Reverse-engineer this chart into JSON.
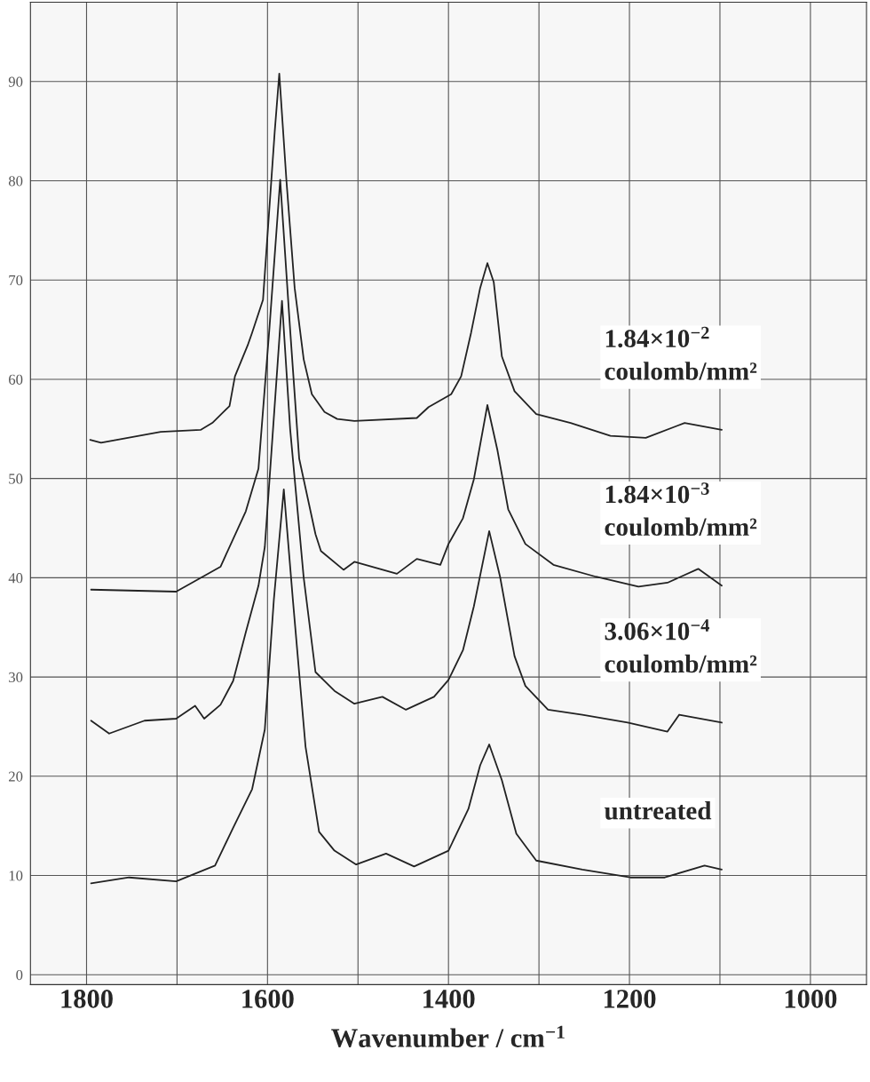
{
  "chart_data": {
    "type": "line",
    "xlabel": "Wavenumber / cm$^{−1}$",
    "xlim": [
      1862,
      938
    ],
    "ylim": [
      -1,
      98
    ],
    "xticks": [
      1800,
      {
        "value": 1700,
        "label": null
      },
      1600,
      {
        "value": 1500,
        "label": null
      },
      1400,
      {
        "value": 1300,
        "label": null
      },
      1200,
      {
        "value": 1100,
        "label": null
      },
      1000
    ],
    "yticks": [
      0,
      10,
      20,
      30,
      40,
      50,
      60,
      70,
      80,
      90
    ],
    "grid": true,
    "legend": false,
    "marker": "none",
    "line_style": "solid",
    "series": [
      {
        "name": "1.84×10$^{−2}$\ncoulomb/mm²",
        "color": "#222222",
        "x": [
          1796,
          1784,
          1718,
          1674,
          1661,
          1642,
          1636,
          1622,
          1617,
          1605,
          1592,
          1587,
          1579,
          1570,
          1560,
          1551,
          1537,
          1523,
          1504,
          1435,
          1422,
          1397,
          1386,
          1375,
          1365,
          1357,
          1350,
          1341,
          1327,
          1303,
          1265,
          1221,
          1182,
          1139,
          1098
        ],
        "values": [
          53.9,
          53.6,
          54.7,
          54.9,
          55.6,
          57.3,
          60.3,
          63.4,
          64.7,
          68,
          85,
          90.8,
          79.9,
          69.2,
          62,
          58.5,
          56.7,
          56,
          55.8,
          56.1,
          57.2,
          58.5,
          60.3,
          64.7,
          69.2,
          71.7,
          69.8,
          62.3,
          58.8,
          56.5,
          55.6,
          54.3,
          54.1,
          55.6,
          54.9
        ]
      },
      {
        "name": "1.84×10$^{−3}$\ncoulomb/mm²",
        "color": "#222222",
        "x": [
          1795,
          1701,
          1652,
          1624,
          1610,
          1598,
          1586,
          1575,
          1565,
          1547,
          1541,
          1516,
          1504,
          1457,
          1435,
          1409,
          1400,
          1384,
          1372,
          1357,
          1346,
          1334,
          1315,
          1284,
          1237,
          1190,
          1158,
          1124,
          1098
        ],
        "values": [
          38.8,
          38.6,
          41.1,
          46.7,
          51,
          65,
          80.1,
          65,
          52,
          44.4,
          42.7,
          40.8,
          41.6,
          40.4,
          41.9,
          41.3,
          43.4,
          46,
          49.9,
          57.4,
          52.9,
          46.9,
          43.4,
          41.3,
          40.1,
          39.1,
          39.5,
          40.9,
          39.2
        ]
      },
      {
        "name": "3.06×10$^{−4}$\ncoulomb/mm²",
        "color": "#222222",
        "x": [
          1795,
          1775,
          1736,
          1701,
          1680,
          1670,
          1652,
          1638,
          1624,
          1610,
          1603,
          1584,
          1575,
          1560,
          1547,
          1526,
          1504,
          1473,
          1447,
          1416,
          1400,
          1384,
          1372,
          1355,
          1343,
          1327,
          1315,
          1290,
          1252,
          1202,
          1158,
          1145,
          1098
        ],
        "values": [
          25.6,
          24.3,
          25.6,
          25.8,
          27.1,
          25.8,
          27.2,
          29.6,
          34.5,
          39.2,
          43.1,
          67.9,
          55,
          40,
          30.5,
          28.6,
          27.3,
          28,
          26.7,
          28,
          29.7,
          32.7,
          37.1,
          44.7,
          40.1,
          32.1,
          29.1,
          26.7,
          26.2,
          25.4,
          24.5,
          26.2,
          25.4
        ]
      },
      {
        "name": "untreated",
        "color": "#222222",
        "x": [
          1795,
          1753,
          1701,
          1658,
          1638,
          1617,
          1603,
          1593,
          1582,
          1572,
          1558,
          1543,
          1526,
          1502,
          1469,
          1438,
          1400,
          1378,
          1365,
          1355,
          1341,
          1325,
          1303,
          1252,
          1199,
          1161,
          1117,
          1098
        ],
        "values": [
          9.2,
          9.8,
          9.4,
          11,
          14.8,
          18.7,
          24.7,
          37.8,
          48.9,
          37.8,
          23,
          14.4,
          12.5,
          11.1,
          12.2,
          10.9,
          12.5,
          16.7,
          21.1,
          23.2,
          19.6,
          14.2,
          11.5,
          10.6,
          9.8,
          9.8,
          11,
          10.6
        ]
      }
    ]
  }
}
